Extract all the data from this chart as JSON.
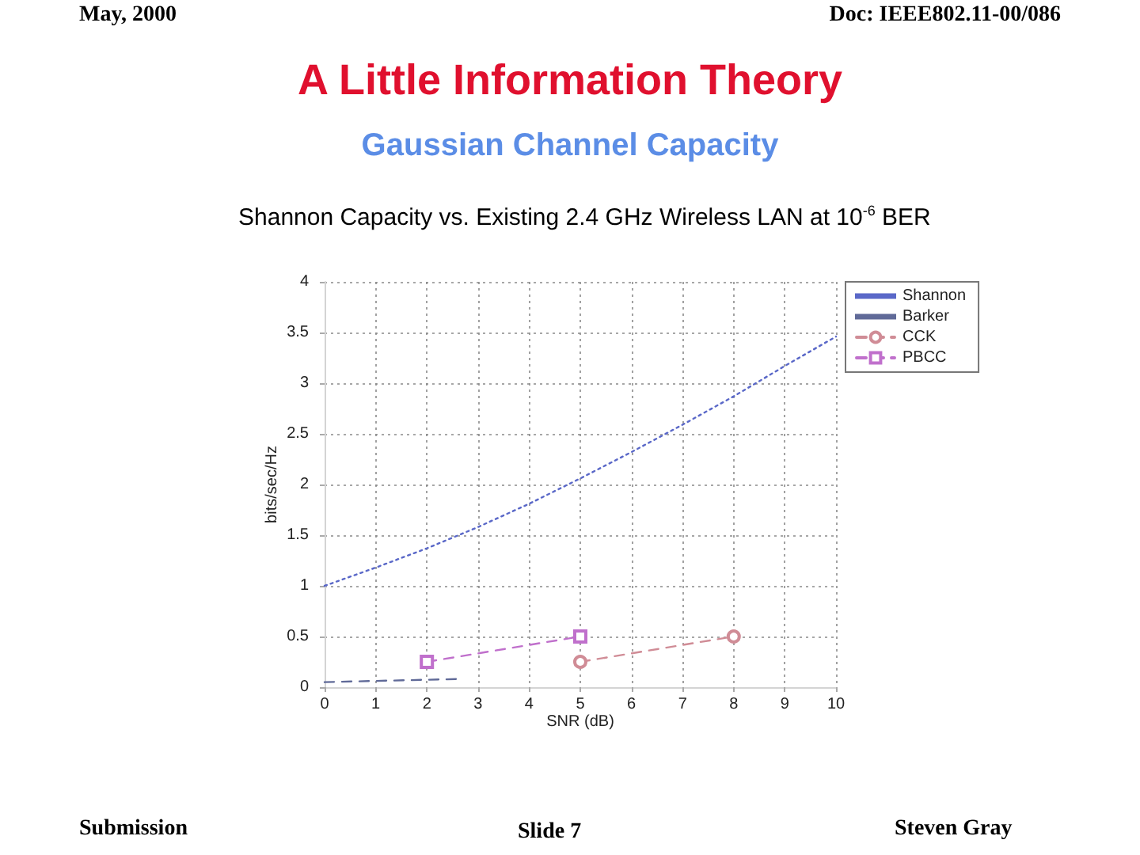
{
  "chart_data": {
    "type": "line",
    "title": "A Little Information Theory",
    "subtitle": "Gaussian Channel Capacity",
    "xlabel": "SNR (dB)",
    "ylabel": "bits/sec/Hz",
    "annotations": [
      "Shannon Capacity vs. Existing 2.4 GHz Wireless LAN at 10$^{-6}$ BER",
      "May, 2000",
      "Doc: IEEE802.11-00/086",
      "Submission",
      "Slide 7",
      "Steven Gray"
    ],
    "xlim": [
      0,
      10
    ],
    "ylim": [
      0,
      4
    ],
    "xticks": [
      0,
      1,
      2,
      3,
      4,
      5,
      6,
      7,
      8,
      9,
      10
    ],
    "yticks": [
      0,
      0.5,
      1,
      1.5,
      2,
      2.5,
      3,
      3.5,
      4
    ],
    "grid": true,
    "legend": "top right",
    "series": [
      {
        "name": "Shannon",
        "color": "#5a68c8",
        "x": [
          0,
          1,
          2,
          3,
          4,
          5,
          6,
          7,
          8,
          9,
          10
        ],
        "values": [
          1.0,
          1.18,
          1.37,
          1.58,
          1.81,
          2.06,
          2.32,
          2.59,
          2.87,
          3.17,
          3.46
        ],
        "marker": "none",
        "line_style": "dotted"
      },
      {
        "name": "Barker",
        "color": "#606a98",
        "x": [
          0,
          2.6
        ],
        "values": [
          0.05,
          0.08
        ],
        "marker": "none",
        "line_style": "dashed"
      },
      {
        "name": "CCK",
        "color": "#d08c96",
        "x": [
          5,
          8
        ],
        "values": [
          0.25,
          0.5
        ],
        "marker": "circle",
        "line_style": "dashed"
      },
      {
        "name": "PBCC",
        "color": "#c070cc",
        "x": [
          2,
          5
        ],
        "values": [
          0.25,
          0.5
        ],
        "marker": "square",
        "line_style": "dashed"
      }
    ]
  }
}
